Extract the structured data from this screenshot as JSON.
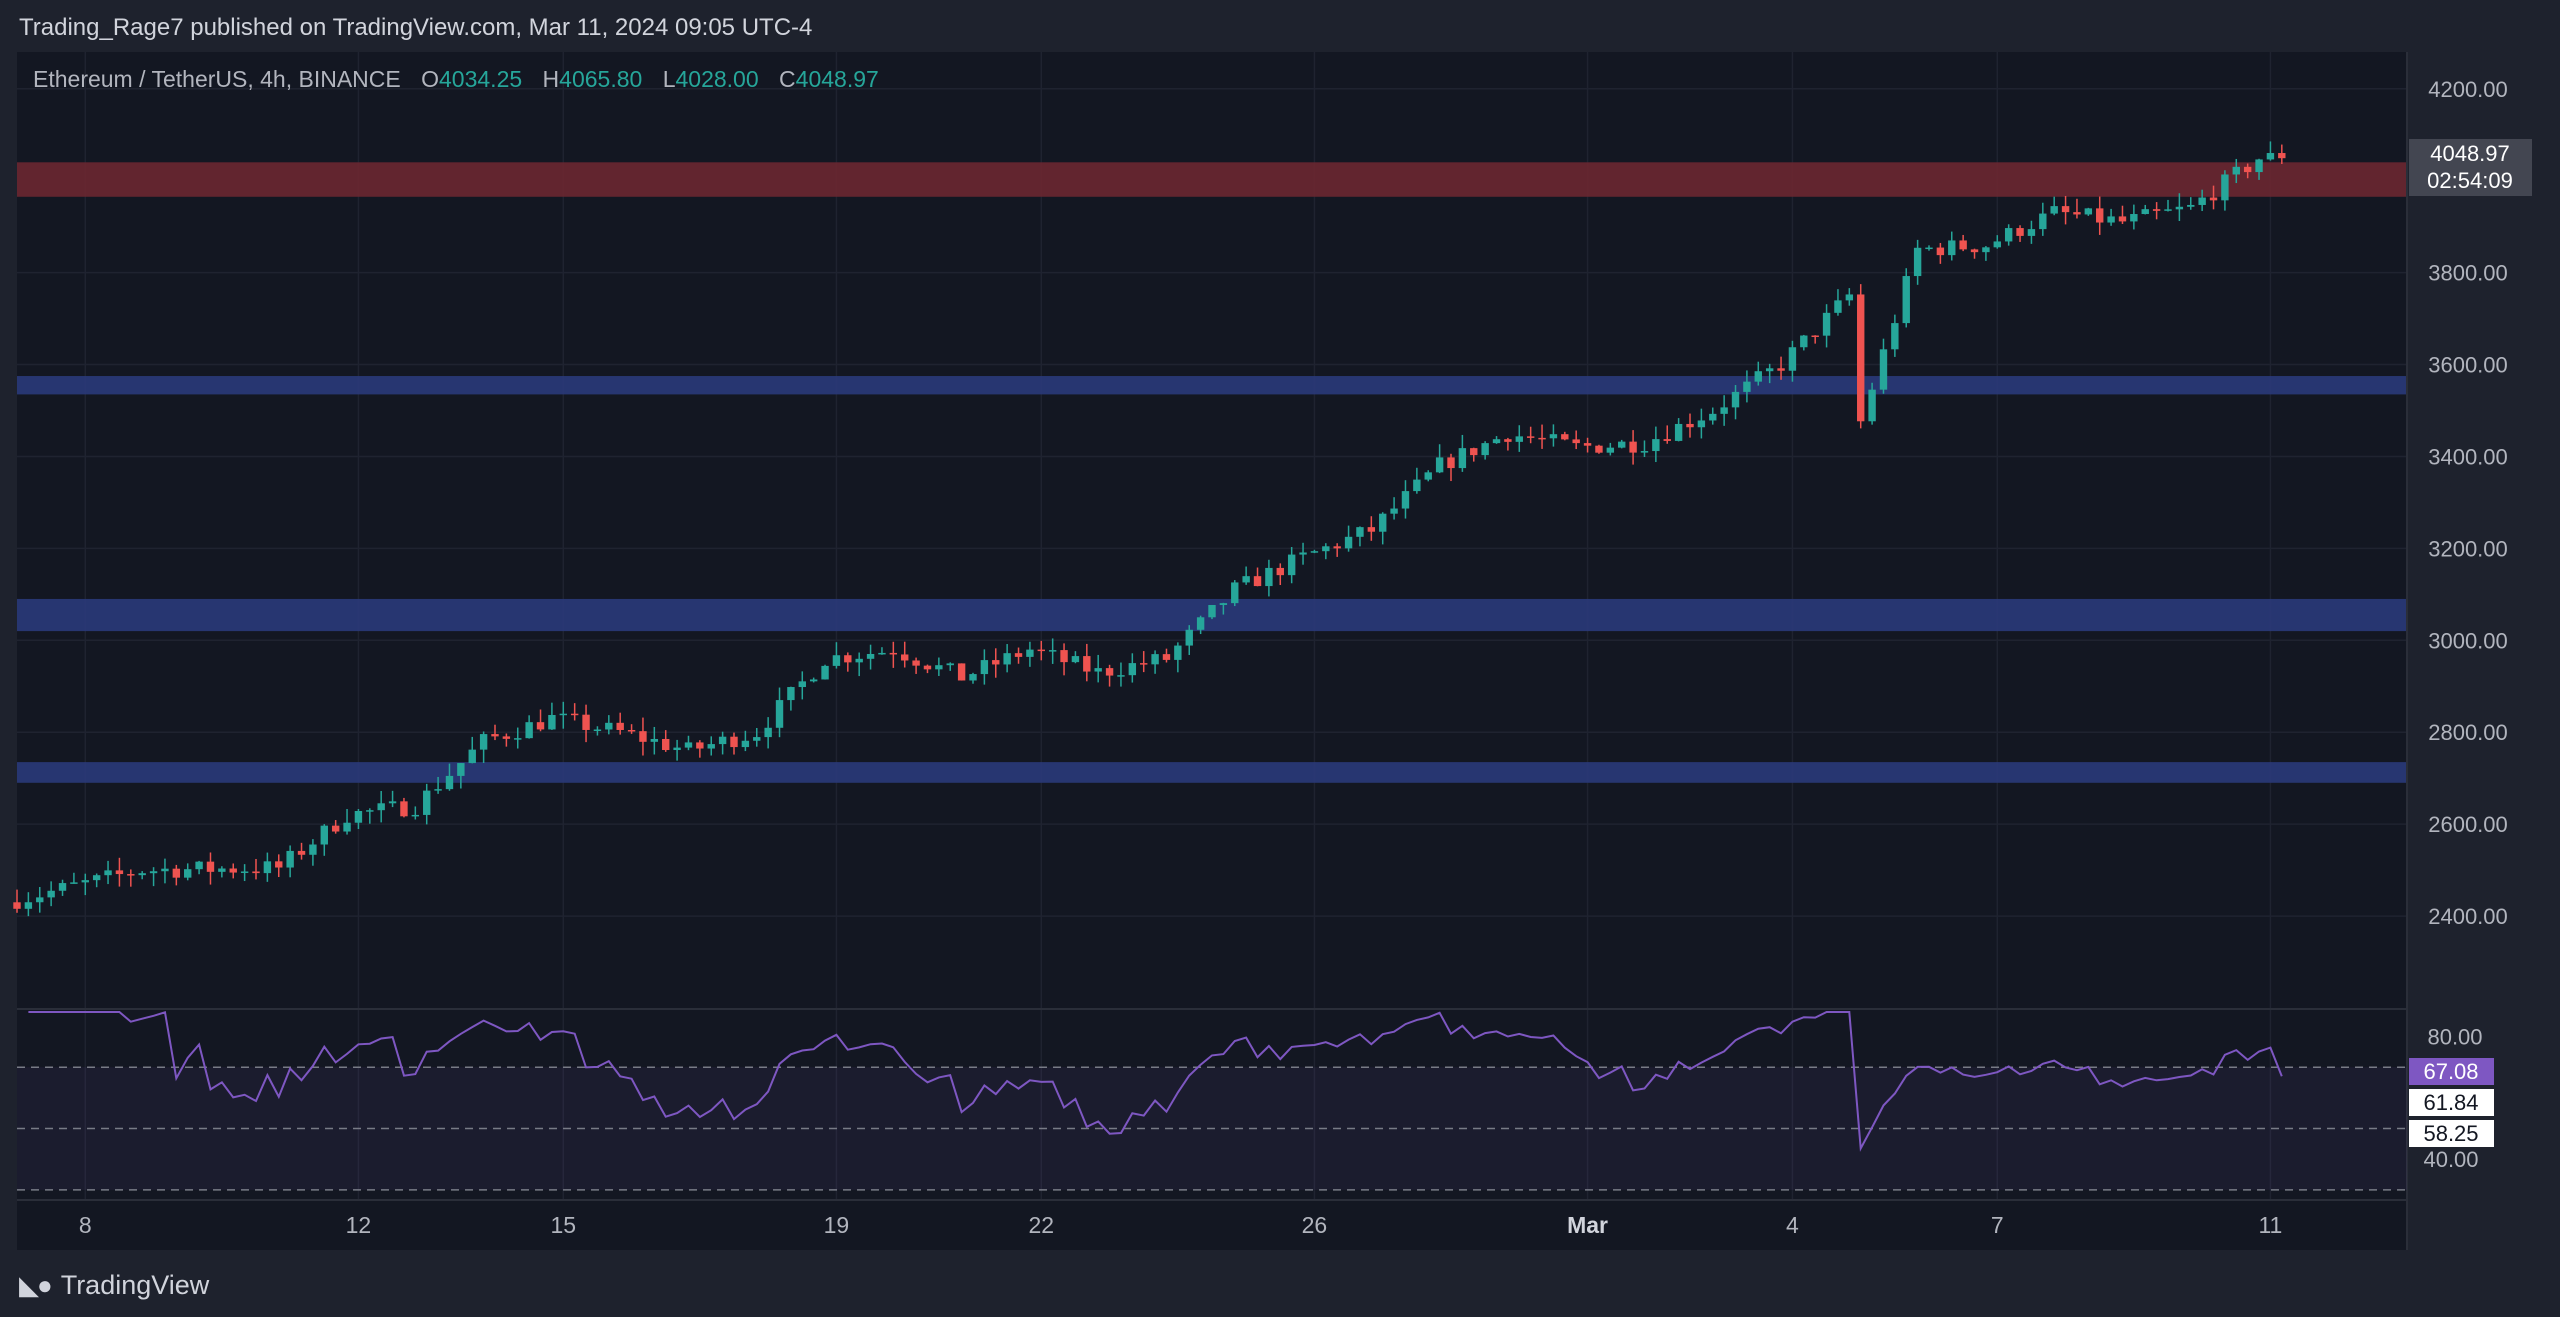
{
  "header": {
    "published_line": "Trading_Rage7 published on TradingView.com, Mar 11, 2024 09:05 UTC-4"
  },
  "legend": {
    "symbol": "Ethereum / TetherUS, 4h, BINANCE",
    "open_label": "O",
    "open": "4034.25",
    "high_label": "H",
    "high": "4065.80",
    "low_label": "L",
    "low": "4028.00",
    "close_label": "C",
    "close": "4048.97"
  },
  "price_tag": {
    "price": "4048.97",
    "countdown": "02:54:09"
  },
  "rsi_tags": {
    "rsi": "67.08",
    "ma1": "61.84",
    "ma2": "58.25"
  },
  "footer": {
    "logo_text": "TradingView"
  },
  "colors": {
    "background": "#131722",
    "up": "#26a69a",
    "down": "#ef5350",
    "resistance_zone": "#6b2731",
    "support_zone": "#2a3a7a",
    "rsi_line": "#7e57c2"
  },
  "chart_data": [
    {
      "type": "candlestick",
      "title": "Ethereum / TetherUS, 4h, BINANCE",
      "xlabel": "",
      "ylabel": "",
      "ylim": [
        2200,
        4280
      ],
      "y_ticks": [
        "4200.00",
        "3800.00",
        "3600.00",
        "3400.00",
        "3200.00",
        "3000.00",
        "2800.00",
        "2600.00",
        "2400.00"
      ],
      "x_ticks": [
        "8",
        "12",
        "15",
        "19",
        "22",
        "26",
        "Mar",
        "4",
        "7",
        "11"
      ],
      "x_tick_dates": [
        "2024-02-08",
        "2024-02-12",
        "2024-02-15",
        "2024-02-19",
        "2024-02-22",
        "2024-02-26",
        "2024-03-01",
        "2024-03-04",
        "2024-03-07",
        "2024-03-11"
      ],
      "x_range": [
        "2024-02-07",
        "2024-03-13"
      ],
      "key_prices": [
        {
          "date": "2024-02-07",
          "price": 2430
        },
        {
          "date": "2024-02-09",
          "price": 2500
        },
        {
          "date": "2024-02-11",
          "price": 2505
        },
        {
          "date": "2024-02-12",
          "price": 2620
        },
        {
          "date": "2024-02-13",
          "price": 2640
        },
        {
          "date": "2024-02-14",
          "price": 2780
        },
        {
          "date": "2024-02-15",
          "price": 2830
        },
        {
          "date": "2024-02-16",
          "price": 2800
        },
        {
          "date": "2024-02-17",
          "price": 2760
        },
        {
          "date": "2024-02-18",
          "price": 2800
        },
        {
          "date": "2024-02-19",
          "price": 2960
        },
        {
          "date": "2024-02-20",
          "price": 2980
        },
        {
          "date": "2024-02-21",
          "price": 2920
        },
        {
          "date": "2024-02-22",
          "price": 2980
        },
        {
          "date": "2024-02-23",
          "price": 2930
        },
        {
          "date": "2024-02-24",
          "price": 2960
        },
        {
          "date": "2024-02-25",
          "price": 3110
        },
        {
          "date": "2024-02-26",
          "price": 3180
        },
        {
          "date": "2024-02-27",
          "price": 3240
        },
        {
          "date": "2024-02-28",
          "price": 3380
        },
        {
          "date": "2024-02-29",
          "price": 3450
        },
        {
          "date": "2024-03-01",
          "price": 3420
        },
        {
          "date": "2024-03-02",
          "price": 3430
        },
        {
          "date": "2024-03-03",
          "price": 3500
        },
        {
          "date": "2024-03-04",
          "price": 3600
        },
        {
          "date": "2024-03-05",
          "price": 3750
        },
        {
          "date": "2024-03-05",
          "price": 3400
        },
        {
          "date": "2024-03-06",
          "price": 3850
        },
        {
          "date": "2024-03-07",
          "price": 3860
        },
        {
          "date": "2024-03-08",
          "price": 3930
        },
        {
          "date": "2024-03-09",
          "price": 3910
        },
        {
          "date": "2024-03-10",
          "price": 3940
        },
        {
          "date": "2024-03-11",
          "price": 4048.97
        }
      ],
      "zones": [
        {
          "type": "resistance",
          "low": 3965,
          "high": 4040
        },
        {
          "type": "support",
          "low": 3535,
          "high": 3575
        },
        {
          "type": "support",
          "low": 3020,
          "high": 3090
        },
        {
          "type": "support",
          "low": 2690,
          "high": 2735
        }
      ]
    },
    {
      "type": "line",
      "title": "RSI",
      "xlabel": "",
      "ylabel": "",
      "ylim": [
        28,
        88
      ],
      "y_ticks": [
        "80.00"
      ],
      "partially_hidden_tick": "40.00",
      "band_levels": [
        70,
        50,
        30
      ],
      "current": {
        "rsi": 67.08,
        "ma1": 61.84,
        "ma2": 58.25
      }
    }
  ]
}
